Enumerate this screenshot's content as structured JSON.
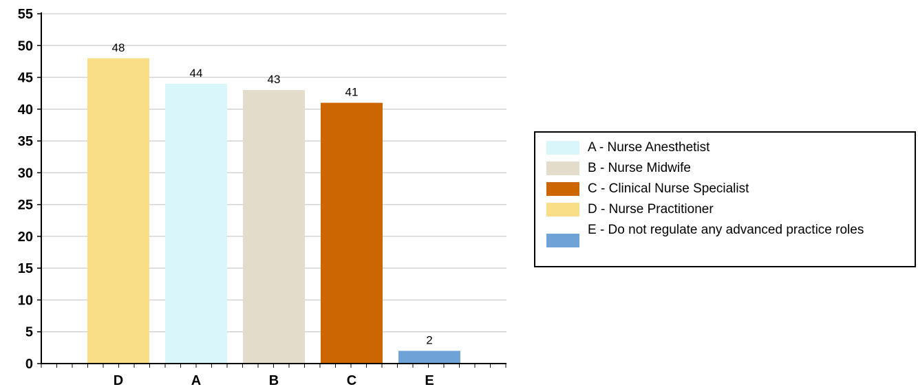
{
  "chart_data": {
    "type": "bar",
    "categories": [
      "D",
      "A",
      "B",
      "C",
      "E"
    ],
    "values": [
      48,
      44,
      43,
      41,
      2
    ],
    "data_labels": [
      "48",
      "44",
      "43",
      "41",
      "2"
    ],
    "colors": [
      "#F9DE87",
      "#D9F7FB",
      "#E3DCCB",
      "#CC6600",
      "#6FA3D8"
    ],
    "ylim": [
      0,
      55
    ],
    "yticks": [
      "0",
      "5",
      "10",
      "15",
      "20",
      "25",
      "30",
      "35",
      "40",
      "45",
      "50",
      "55"
    ],
    "grid": true,
    "legend_position": "right",
    "legend": [
      {
        "label": "A - Nurse Anesthetist",
        "color": "#D9F7FB"
      },
      {
        "label": "B - Nurse Midwife",
        "color": "#E3DCCB"
      },
      {
        "label": "C - Clinical Nurse Specialist",
        "color": "#CC6600"
      },
      {
        "label": "D - Nurse Practitioner",
        "color": "#F9DE87"
      },
      {
        "label": "E - Do not regulate any advanced practice roles",
        "color": "#6FA3D8"
      }
    ]
  }
}
